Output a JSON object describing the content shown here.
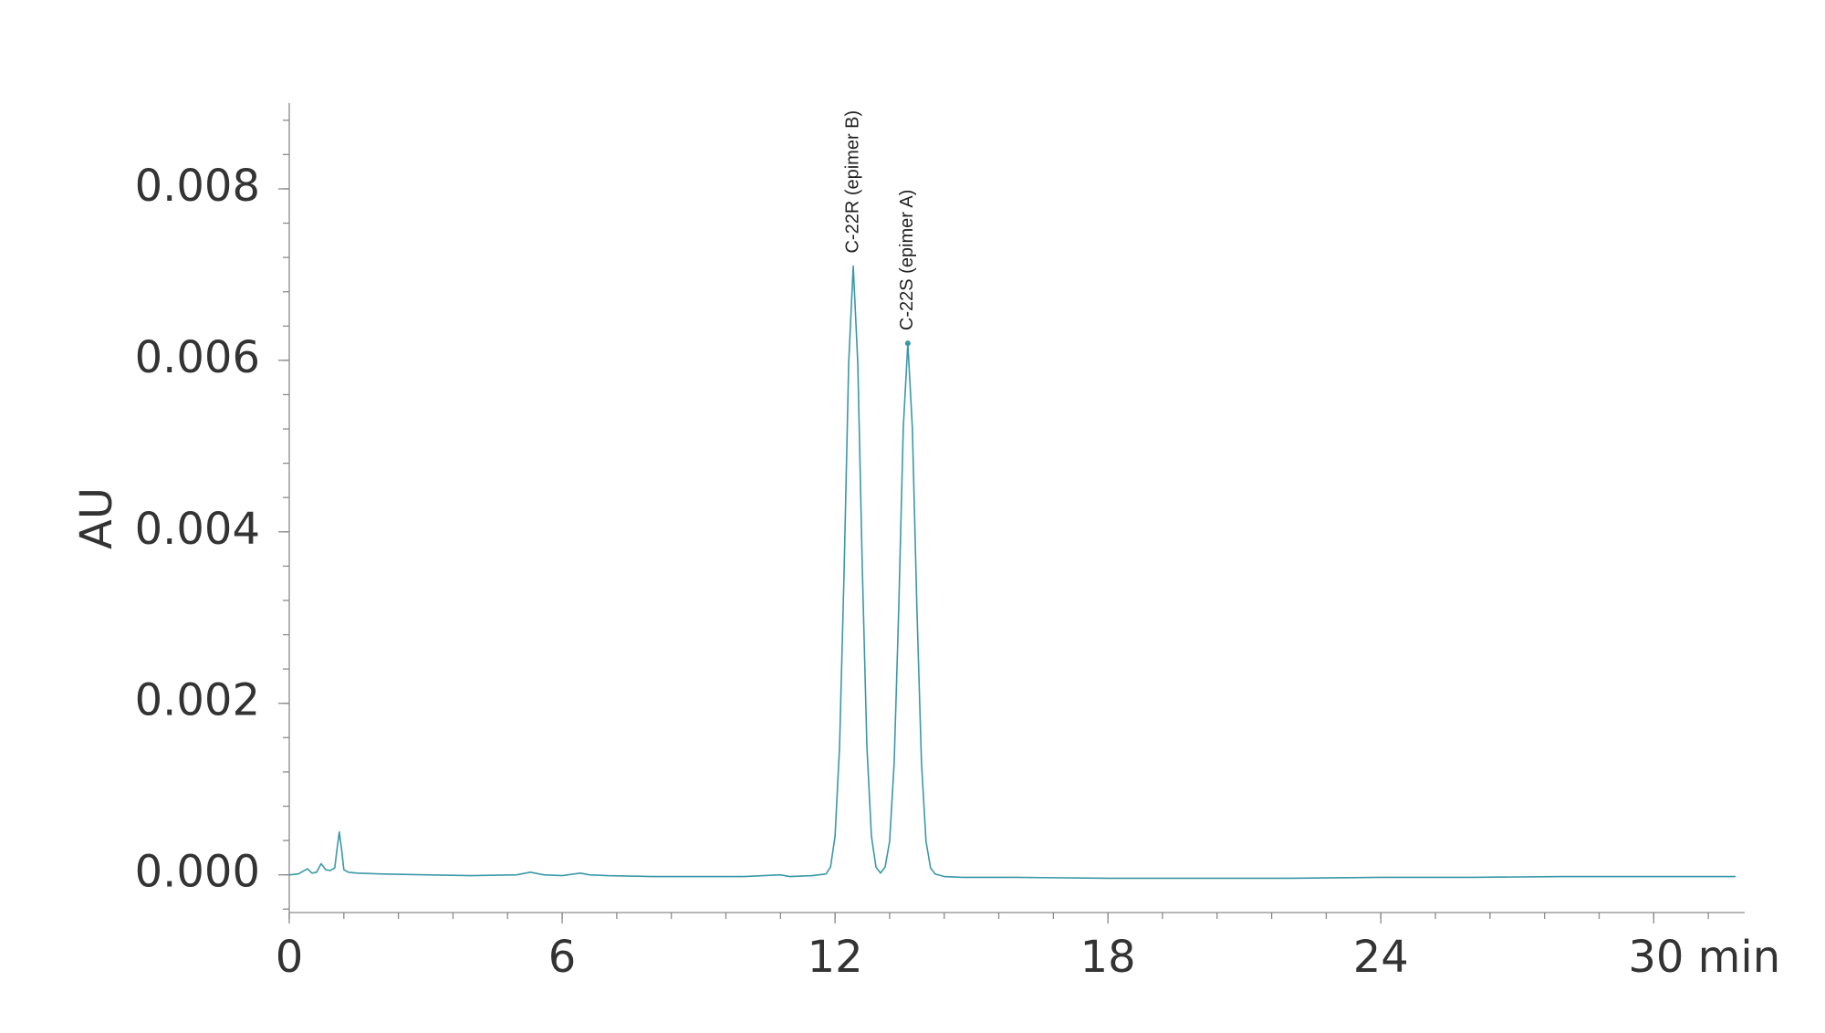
{
  "chart_data": {
    "type": "line",
    "y_label": "AU",
    "xlim": [
      0,
      32
    ],
    "ylim": [
      -0.00044,
      0.009
    ],
    "xticks": [
      0,
      6,
      12,
      18,
      24,
      {
        "value": 30,
        "label": "30 min"
      }
    ],
    "yticks": [
      {
        "value": 0,
        "label": "0.000"
      },
      {
        "value": 0.002,
        "label": "0.002"
      },
      {
        "value": 0.004,
        "label": "0.004"
      },
      {
        "value": 0.006,
        "label": "0.006"
      },
      {
        "value": 0.008,
        "label": "0.008"
      }
    ],
    "grid": false,
    "x": [
      0,
      0.2,
      0.4,
      0.5,
      0.6,
      0.7,
      0.8,
      0.9,
      1.0,
      1.05,
      1.1,
      1.15,
      1.2,
      1.3,
      1.5,
      2,
      3,
      4,
      5,
      5.3,
      5.6,
      6,
      6.4,
      6.6,
      7,
      8,
      9,
      10,
      10.8,
      11,
      11.5,
      11.8,
      11.9,
      12.0,
      12.1,
      12.2,
      12.3,
      12.4,
      12.5,
      12.6,
      12.7,
      12.8,
      12.9,
      13.0,
      13.1,
      13.2,
      13.3,
      13.4,
      13.5,
      13.6,
      13.7,
      13.8,
      13.9,
      14.0,
      14.1,
      14.2,
      14.4,
      14.8,
      16,
      18,
      20,
      22,
      24,
      26,
      28,
      30,
      31.8
    ],
    "series": [
      {
        "color": "#3a98a6",
        "values": [
          0,
          1e-05,
          7e-05,
          2e-05,
          3e-05,
          0.00013,
          6e-05,
          5e-05,
          8e-05,
          0.0003,
          0.0005,
          0.0003,
          6e-05,
          3e-05,
          2e-05,
          1e-05,
          0,
          -1e-05,
          0,
          3e-05,
          0,
          -1e-05,
          2e-05,
          0,
          -1e-05,
          -2e-05,
          -2e-05,
          -2e-05,
          0,
          -2e-05,
          -1e-05,
          1e-05,
          9e-05,
          0.00045,
          0.0015,
          0.00356,
          0.00597,
          0.0071,
          0.00597,
          0.00356,
          0.0015,
          0.00045,
          9e-05,
          2e-05,
          9e-05,
          0.00039,
          0.00131,
          0.0031,
          0.00521,
          0.0062,
          0.00521,
          0.0031,
          0.00131,
          0.00039,
          8e-05,
          1e-05,
          -2e-05,
          -3e-05,
          -3e-05,
          -4e-05,
          -4e-05,
          -4e-05,
          -3e-05,
          -3e-05,
          -2e-05,
          -2e-05,
          -2e-05
        ]
      }
    ],
    "annotations": [
      {
        "text": "C-22R (epimer B)",
        "x": 12.4,
        "y": 0.0071
      },
      {
        "text": "C-22S (epimer A)",
        "x": 13.6,
        "y": 0.0062,
        "marker": true
      }
    ]
  }
}
